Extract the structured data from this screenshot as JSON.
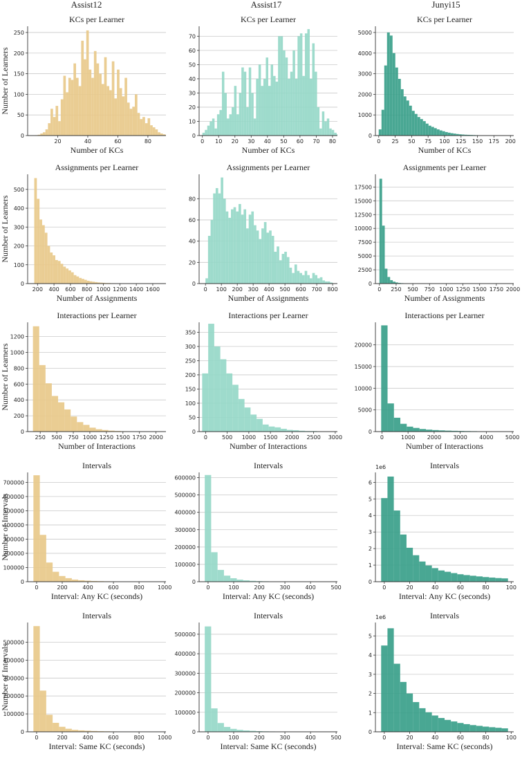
{
  "colors": {
    "Assist12": "#e8c98a",
    "Assist17": "#96d8c8",
    "Junyi15": "#3a9f8a"
  },
  "column_titles": [
    "Assist12",
    "Assist17",
    "Junyi15"
  ],
  "chart_data": [
    {
      "id": "kcs-assist12",
      "type": "bar",
      "dataset": "Assist12",
      "title": "KCs per Learner",
      "xlabel": "Number of KCs",
      "ylabel": "Number of Learners",
      "xlim": [
        0,
        92
      ],
      "ylim": [
        0,
        265
      ],
      "xticks": [
        20,
        40,
        60,
        80
      ],
      "yticks": [
        0,
        50,
        100,
        150,
        200,
        250
      ],
      "bins": {
        "start": 5,
        "width": 1.7
      },
      "values": [
        1,
        2,
        5,
        8,
        15,
        30,
        65,
        45,
        72,
        35,
        88,
        145,
        105,
        140,
        135,
        175,
        140,
        120,
        230,
        185,
        255,
        160,
        140,
        205,
        175,
        150,
        125,
        190,
        120,
        110,
        180,
        90,
        160,
        115,
        95,
        140,
        80,
        65,
        70,
        100,
        55,
        40,
        45,
        30,
        42,
        25,
        20,
        15,
        8,
        5,
        3,
        2,
        1,
        1
      ]
    },
    {
      "id": "kcs-assist17",
      "type": "bar",
      "dataset": "Assist17",
      "title": "KCs per Learner",
      "xlabel": "Number of KCs",
      "ylabel": "",
      "xlim": [
        -2,
        83
      ],
      "ylim": [
        0,
        77
      ],
      "xticks": [
        0,
        10,
        20,
        30,
        40,
        50,
        60,
        70,
        80
      ],
      "yticks": [
        0,
        10,
        20,
        30,
        40,
        50,
        60,
        70
      ],
      "bins": {
        "start": 0,
        "width": 1.5
      },
      "values": [
        2,
        4,
        7,
        10,
        12,
        5,
        15,
        18,
        45,
        30,
        12,
        15,
        20,
        35,
        15,
        30,
        48,
        45,
        20,
        48,
        30,
        12,
        40,
        50,
        35,
        40,
        55,
        35,
        50,
        42,
        38,
        70,
        70,
        60,
        55,
        40,
        45,
        60,
        40,
        70,
        72,
        42,
        72,
        75,
        40,
        65,
        45,
        20,
        5,
        17,
        10,
        12,
        5,
        4,
        2,
        1
      ]
    },
    {
      "id": "kcs-junyi15",
      "type": "bar",
      "dataset": "Junyi15",
      "title": "KCs per Learner",
      "xlabel": "Number of KCs",
      "ylabel": "",
      "xlim": [
        -5,
        205
      ],
      "ylim": [
        0,
        5300
      ],
      "xticks": [
        0,
        25,
        50,
        75,
        100,
        125,
        150,
        175,
        200
      ],
      "yticks": [
        0,
        1000,
        2000,
        3000,
        4000,
        5000
      ],
      "bins": {
        "start": 0,
        "width": 4.2
      },
      "values": [
        300,
        1250,
        3400,
        5000,
        4850,
        4000,
        3300,
        2750,
        2250,
        1900,
        1700,
        1450,
        1200,
        1050,
        900,
        800,
        700,
        580,
        480,
        420,
        360,
        300,
        250,
        210,
        170,
        140,
        115,
        95,
        75,
        60,
        50,
        40,
        35,
        30,
        25,
        20,
        17,
        14,
        12,
        10,
        8,
        6,
        5,
        4,
        3,
        2,
        2,
        1
      ]
    },
    {
      "id": "assign-assist12",
      "type": "bar",
      "dataset": "Assist12",
      "title": "Assignments per Learner",
      "xlabel": "Number of Assignments",
      "ylabel": "Number of Learners",
      "xlim": [
        80,
        1760
      ],
      "ylim": [
        0,
        580
      ],
      "xticks": [
        200,
        400,
        600,
        800,
        1000,
        1200,
        1400,
        1600
      ],
      "yticks": [
        0,
        100,
        200,
        300,
        400,
        500
      ],
      "bins": {
        "start": 160,
        "width": 32
      },
      "values": [
        560,
        450,
        340,
        310,
        270,
        200,
        165,
        150,
        125,
        120,
        105,
        90,
        80,
        70,
        60,
        45,
        38,
        30,
        25,
        20,
        15,
        12,
        10,
        8,
        6,
        5,
        4,
        3,
        3,
        2,
        2,
        1,
        1,
        1,
        1,
        1
      ]
    },
    {
      "id": "assign-assist17",
      "type": "bar",
      "dataset": "Assist17",
      "title": "Assignments per Learner",
      "xlabel": "Number of Assignments",
      "ylabel": "",
      "xlim": [
        -40,
        830
      ],
      "ylim": [
        0,
        103
      ],
      "xticks": [
        0,
        100,
        200,
        300,
        400,
        500,
        600,
        700,
        800
      ],
      "yticks": [
        0,
        20,
        40,
        60,
        80
      ],
      "bins": {
        "start": 0,
        "width": 16
      },
      "values": [
        5,
        45,
        60,
        85,
        90,
        85,
        100,
        80,
        68,
        62,
        70,
        72,
        68,
        75,
        65,
        70,
        52,
        65,
        68,
        55,
        50,
        42,
        52,
        58,
        48,
        50,
        45,
        30,
        35,
        22,
        28,
        30,
        25,
        15,
        10,
        18,
        12,
        10,
        8,
        12,
        8,
        5,
        10,
        8,
        5,
        6,
        3,
        2,
        2,
        1
      ]
    },
    {
      "id": "assign-junyi15",
      "type": "bar",
      "dataset": "Junyi15",
      "title": "Assignments per Learner",
      "xlabel": "Number of Assignments",
      "ylabel": "",
      "xlim": [
        -60,
        2010
      ],
      "ylim": [
        0,
        19800
      ],
      "xticks": [
        0,
        250,
        500,
        750,
        1000,
        1250,
        1500,
        1750,
        2000
      ],
      "yticks": [
        0,
        2500,
        5000,
        7500,
        10000,
        12500,
        15000,
        17500
      ],
      "bins": {
        "start": 0,
        "width": 40
      },
      "values": [
        19000,
        10500,
        2700,
        1200,
        620,
        350,
        200,
        120,
        80,
        50,
        35,
        25,
        15,
        10,
        8,
        5,
        4,
        3,
        2,
        2,
        1,
        1,
        1,
        1,
        1
      ]
    },
    {
      "id": "inter-assist12",
      "type": "bar",
      "dataset": "Assist12",
      "title": "Interactions per Learner",
      "xlabel": "Number of Interactions",
      "ylabel": "Number of Learners",
      "xlim": [
        60,
        2150
      ],
      "ylim": [
        0,
        1380
      ],
      "xticks": [
        250,
        500,
        750,
        1000,
        1250,
        1500,
        1750,
        2000
      ],
      "yticks": [
        0,
        200,
        400,
        600,
        800,
        1000,
        1200
      ],
      "bins": {
        "start": 140,
        "width": 95
      },
      "values": [
        1330,
        840,
        610,
        450,
        370,
        280,
        190,
        120,
        85,
        50,
        30,
        20,
        12,
        8,
        5,
        3,
        2,
        1,
        1
      ]
    },
    {
      "id": "inter-assist17",
      "type": "bar",
      "dataset": "Assist17",
      "title": "Interactions per Learner",
      "xlabel": "Number of Interactions",
      "ylabel": "",
      "xlim": [
        -150,
        3050
      ],
      "ylim": [
        0,
        385
      ],
      "xticks": [
        0,
        500,
        1000,
        1500,
        2000,
        2500,
        3000
      ],
      "yticks": [
        0,
        50,
        100,
        150,
        200,
        250,
        300,
        350
      ],
      "bins": {
        "start": -80,
        "width": 140
      },
      "values": [
        205,
        380,
        300,
        255,
        205,
        165,
        115,
        85,
        60,
        45,
        25,
        18,
        15,
        10,
        6,
        5,
        3,
        2,
        2,
        1,
        1,
        1
      ]
    },
    {
      "id": "inter-junyi15",
      "type": "bar",
      "dataset": "Junyi15",
      "title": "Interactions per Learner",
      "xlabel": "Number of Interactions",
      "ylabel": "",
      "xlim": [
        -250,
        5050
      ],
      "ylim": [
        0,
        25200
      ],
      "xticks": [
        0,
        1000,
        2000,
        3000,
        4000,
        5000
      ],
      "yticks": [
        0,
        5000,
        10000,
        15000,
        20000
      ],
      "bins": {
        "start": -30,
        "width": 245
      },
      "values": [
        24500,
        6500,
        3200,
        1800,
        1150,
        850,
        600,
        450,
        350,
        280,
        220,
        180,
        150,
        120,
        100,
        80,
        60,
        50,
        40,
        30,
        20
      ]
    },
    {
      "id": "int-any-assist12",
      "type": "bar",
      "dataset": "Assist12",
      "title": "Intervals",
      "xlabel": "Interval: Any KC (seconds)",
      "ylabel": "Number of Intervals",
      "xlim": [
        -70,
        1010
      ],
      "ylim": [
        0,
        770000
      ],
      "xticks": [
        0,
        200,
        400,
        600,
        800,
        1000
      ],
      "yticks": [
        0,
        100000,
        200000,
        300000,
        400000,
        500000,
        600000,
        700000
      ],
      "bins": {
        "start": -25,
        "width": 50
      },
      "values": [
        750000,
        330000,
        135000,
        70000,
        40000,
        25000,
        15000,
        10000,
        7000,
        5000,
        4000,
        3000,
        2500,
        2000,
        1500,
        1200,
        1000,
        800,
        600,
        500
      ]
    },
    {
      "id": "int-any-assist17",
      "type": "bar",
      "dataset": "Assist17",
      "title": "Intervals",
      "xlabel": "Interval: Any KC (seconds)",
      "ylabel": "",
      "xlim": [
        -35,
        505
      ],
      "ylim": [
        0,
        630000
      ],
      "xticks": [
        0,
        100,
        200,
        300,
        400,
        500
      ],
      "yticks": [
        0,
        100000,
        200000,
        300000,
        400000,
        500000,
        600000
      ],
      "bins": {
        "start": -13,
        "width": 25
      },
      "values": [
        615000,
        170000,
        68000,
        35000,
        20000,
        12000,
        8000,
        5000,
        3500,
        2500,
        2000,
        1500,
        1000,
        800,
        600,
        500,
        400,
        300,
        200,
        150
      ]
    },
    {
      "id": "int-any-junyi15",
      "type": "bar",
      "dataset": "Junyi15",
      "title": "Intervals",
      "xlabel": "Interval: Any KC (seconds)",
      "ylabel": "",
      "offset_label": "1e6",
      "xlim": [
        -7,
        102
      ],
      "ylim": [
        0,
        6.6
      ],
      "xticks": [
        0,
        20,
        40,
        60,
        80,
        100
      ],
      "yticks": [
        0,
        1,
        2,
        3,
        4,
        5,
        6
      ],
      "bins": {
        "start": -2.5,
        "width": 5
      },
      "values": [
        5.05,
        6.35,
        4.3,
        2.85,
        2.05,
        1.6,
        1.22,
        0.98,
        0.82,
        0.68,
        0.6,
        0.52,
        0.45,
        0.4,
        0.36,
        0.32,
        0.28,
        0.25,
        0.22,
        0.2
      ]
    },
    {
      "id": "int-same-assist12",
      "type": "bar",
      "dataset": "Assist12",
      "title": "Intervals",
      "xlabel": "Interval: Same KC (seconds)",
      "ylabel": "Number of Intervals",
      "xlim": [
        -70,
        1010
      ],
      "ylim": [
        0,
        610000
      ],
      "xticks": [
        0,
        200,
        400,
        600,
        800,
        1000
      ],
      "yticks": [
        0,
        100000,
        200000,
        300000,
        400000,
        500000
      ],
      "bins": {
        "start": -25,
        "width": 50
      },
      "values": [
        590000,
        230000,
        95000,
        50000,
        28000,
        17000,
        11000,
        8000,
        6000,
        4500,
        3500,
        2800,
        2200,
        1800,
        1400,
        1100,
        900,
        700,
        500,
        400
      ]
    },
    {
      "id": "int-same-assist17",
      "type": "bar",
      "dataset": "Assist17",
      "title": "Intervals",
      "xlabel": "Interval: Same KC (seconds)",
      "ylabel": "",
      "xlim": [
        -35,
        505
      ],
      "ylim": [
        0,
        560000
      ],
      "xticks": [
        0,
        100,
        200,
        300,
        400,
        500
      ],
      "yticks": [
        0,
        100000,
        200000,
        300000,
        400000,
        500000
      ],
      "bins": {
        "start": -13,
        "width": 25
      },
      "values": [
        540000,
        120000,
        45000,
        25000,
        15000,
        10000,
        7000,
        5000,
        3500,
        2500,
        2000,
        1500,
        1000,
        800,
        600,
        500,
        400,
        300,
        200,
        150
      ]
    },
    {
      "id": "int-same-junyi15",
      "type": "bar",
      "dataset": "Junyi15",
      "title": "Intervals",
      "xlabel": "Interval: Same KC (seconds)",
      "ylabel": "",
      "offset_label": "1e6",
      "xlim": [
        -7,
        102
      ],
      "ylim": [
        0,
        5.7
      ],
      "xticks": [
        0,
        20,
        40,
        60,
        80,
        100
      ],
      "yticks": [
        0,
        1,
        2,
        3,
        4,
        5
      ],
      "bins": {
        "start": -2.5,
        "width": 5
      },
      "values": [
        4.5,
        5.4,
        3.55,
        2.6,
        2.0,
        1.55,
        1.23,
        1.02,
        0.85,
        0.72,
        0.62,
        0.54,
        0.46,
        0.4,
        0.35,
        0.31,
        0.27,
        0.24,
        0.21,
        0.18
      ]
    }
  ]
}
